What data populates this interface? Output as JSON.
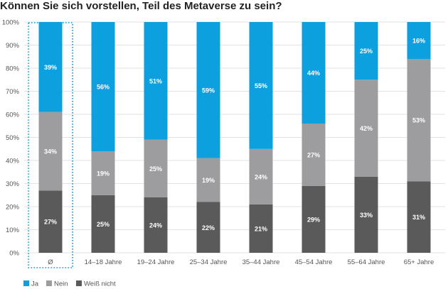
{
  "chart_data": {
    "type": "bar",
    "stacked": true,
    "title": "Können Sie sich vorstellen, Teil des Metaverse zu sein?",
    "categories": [
      "Ø",
      "14–18 Jahre",
      "19–24 Jahre",
      "25–34 Jahre",
      "35–44 Jahre",
      "45–54 Jahre",
      "55–64 Jahre",
      "65+ Jahre"
    ],
    "series": [
      {
        "name": "Weiß nicht",
        "color": "#5a5a5a",
        "values": [
          27,
          25,
          24,
          22,
          21,
          29,
          33,
          31
        ]
      },
      {
        "name": "Nein",
        "color": "#9d9d9f",
        "values": [
          34,
          19,
          25,
          19,
          24,
          27,
          42,
          53
        ]
      },
      {
        "name": "Ja",
        "color": "#0ca0de",
        "values": [
          39,
          56,
          51,
          59,
          55,
          44,
          25,
          16
        ]
      }
    ],
    "value_labels": [
      [
        "27%",
        "25%",
        "24%",
        "22%",
        "21%",
        "29%",
        "33%",
        "31%"
      ],
      [
        "34%",
        "19%",
        "25%",
        "19%",
        "24%",
        "27%",
        "42%",
        "53%"
      ],
      [
        "39%",
        "56%",
        "51%",
        "59%",
        "55%",
        "44%",
        "25%",
        "16%"
      ]
    ],
    "yticks": [
      "0%",
      "10%",
      "20%",
      "30%",
      "40%",
      "50%",
      "60%",
      "70%",
      "80%",
      "90%",
      "100%"
    ],
    "ylim": [
      0,
      100
    ],
    "grid": true,
    "legend": {
      "position": "bottom-left",
      "order": [
        "Ja",
        "Nein",
        "Weiß nicht"
      ]
    },
    "highlight_category": "Ø",
    "highlight_color": "#0ca0de"
  }
}
